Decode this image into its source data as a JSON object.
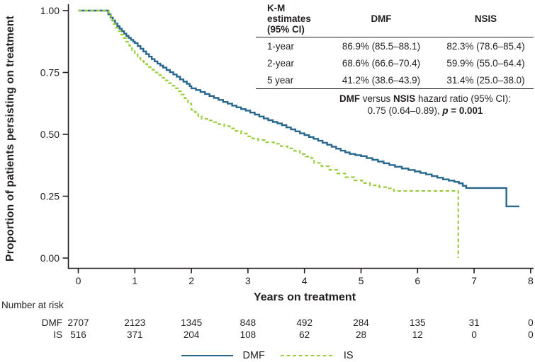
{
  "chart_data": {
    "type": "line",
    "subtype": "kaplan-meier-step",
    "title": "",
    "xlabel": "Years on treatment",
    "ylabel": "Proportion of patients persisting on treatment",
    "xlim": [
      0,
      8
    ],
    "ylim": [
      0.0,
      1.0
    ],
    "grid": false,
    "axis_color": "#231f20",
    "x_ticks": [
      {
        "value": 0,
        "label": "0"
      },
      {
        "value": 1,
        "label": "1"
      },
      {
        "value": 2,
        "label": "2"
      },
      {
        "value": 3,
        "label": "3"
      },
      {
        "value": 4,
        "label": "4"
      },
      {
        "value": 5,
        "label": "5"
      },
      {
        "value": 6,
        "label": "6"
      },
      {
        "value": 7,
        "label": "7"
      },
      {
        "value": 8,
        "label": "8"
      }
    ],
    "y_ticks": [
      {
        "value": 0.0,
        "label": "0.00"
      },
      {
        "value": 0.25,
        "label": "0.25"
      },
      {
        "value": 0.5,
        "label": "0.50"
      },
      {
        "value": 0.75,
        "label": "0.75"
      },
      {
        "value": 1.0,
        "label": "1.00"
      }
    ],
    "series": [
      {
        "name": "DMF",
        "color": "#27678e",
        "style": "solid",
        "points": [
          [
            0,
            1.0
          ],
          [
            0.5,
            1.0
          ],
          [
            0.53,
            0.985
          ],
          [
            0.57,
            0.972
          ],
          [
            0.61,
            0.96
          ],
          [
            0.65,
            0.948
          ],
          [
            0.69,
            0.937
          ],
          [
            0.73,
            0.927
          ],
          [
            0.77,
            0.917
          ],
          [
            0.81,
            0.907
          ],
          [
            0.85,
            0.898
          ],
          [
            0.89,
            0.89
          ],
          [
            0.93,
            0.882
          ],
          [
            0.97,
            0.875
          ],
          [
            1.0,
            0.869
          ],
          [
            1.05,
            0.857
          ],
          [
            1.1,
            0.846
          ],
          [
            1.15,
            0.835
          ],
          [
            1.2,
            0.824
          ],
          [
            1.25,
            0.814
          ],
          [
            1.3,
            0.804
          ],
          [
            1.35,
            0.795
          ],
          [
            1.4,
            0.786
          ],
          [
            1.45,
            0.778
          ],
          [
            1.5,
            0.77
          ],
          [
            1.56,
            0.76
          ],
          [
            1.62,
            0.751
          ],
          [
            1.68,
            0.742
          ],
          [
            1.74,
            0.733
          ],
          [
            1.8,
            0.722
          ],
          [
            1.86,
            0.713
          ],
          [
            1.92,
            0.704
          ],
          [
            1.97,
            0.695
          ],
          [
            2.0,
            0.686
          ],
          [
            2.08,
            0.679
          ],
          [
            2.16,
            0.671
          ],
          [
            2.24,
            0.663
          ],
          [
            2.32,
            0.655
          ],
          [
            2.4,
            0.647
          ],
          [
            2.48,
            0.639
          ],
          [
            2.56,
            0.631
          ],
          [
            2.64,
            0.624
          ],
          [
            2.72,
            0.616
          ],
          [
            2.8,
            0.609
          ],
          [
            2.88,
            0.602
          ],
          [
            2.96,
            0.596
          ],
          [
            3.04,
            0.588
          ],
          [
            3.12,
            0.58
          ],
          [
            3.2,
            0.572
          ],
          [
            3.28,
            0.564
          ],
          [
            3.36,
            0.557
          ],
          [
            3.44,
            0.55
          ],
          [
            3.52,
            0.544
          ],
          [
            3.6,
            0.537
          ],
          [
            3.68,
            0.528
          ],
          [
            3.76,
            0.52
          ],
          [
            3.84,
            0.512
          ],
          [
            3.92,
            0.504
          ],
          [
            4.0,
            0.497
          ],
          [
            4.08,
            0.489
          ],
          [
            4.16,
            0.482
          ],
          [
            4.24,
            0.474
          ],
          [
            4.32,
            0.466
          ],
          [
            4.4,
            0.458
          ],
          [
            4.48,
            0.45
          ],
          [
            4.56,
            0.442
          ],
          [
            4.64,
            0.434
          ],
          [
            4.72,
            0.427
          ],
          [
            4.8,
            0.421
          ],
          [
            4.9,
            0.416
          ],
          [
            5.0,
            0.412
          ],
          [
            5.1,
            0.404
          ],
          [
            5.2,
            0.397
          ],
          [
            5.3,
            0.39
          ],
          [
            5.4,
            0.383
          ],
          [
            5.5,
            0.376
          ],
          [
            5.6,
            0.369
          ],
          [
            5.72,
            0.362
          ],
          [
            5.84,
            0.356
          ],
          [
            5.95,
            0.35
          ],
          [
            6.05,
            0.344
          ],
          [
            6.15,
            0.338
          ],
          [
            6.25,
            0.331
          ],
          [
            6.35,
            0.325
          ],
          [
            6.45,
            0.318
          ],
          [
            6.55,
            0.313
          ],
          [
            6.65,
            0.308
          ],
          [
            6.73,
            0.302
          ],
          [
            6.8,
            0.292
          ],
          [
            6.86,
            0.283
          ],
          [
            7.55,
            0.283
          ],
          [
            7.57,
            0.209
          ],
          [
            7.8,
            0.209
          ]
        ]
      },
      {
        "name": "IS",
        "color": "#9ccd3f",
        "style": "dashed",
        "points": [
          [
            0,
            1.0
          ],
          [
            0.5,
            1.0
          ],
          [
            0.54,
            0.98
          ],
          [
            0.58,
            0.962
          ],
          [
            0.62,
            0.946
          ],
          [
            0.66,
            0.931
          ],
          [
            0.7,
            0.917
          ],
          [
            0.75,
            0.903
          ],
          [
            0.8,
            0.889
          ],
          [
            0.85,
            0.874
          ],
          [
            0.9,
            0.858
          ],
          [
            0.95,
            0.841
          ],
          [
            1.0,
            0.823
          ],
          [
            1.05,
            0.809
          ],
          [
            1.1,
            0.796
          ],
          [
            1.16,
            0.784
          ],
          [
            1.22,
            0.772
          ],
          [
            1.28,
            0.761
          ],
          [
            1.34,
            0.75
          ],
          [
            1.4,
            0.74
          ],
          [
            1.46,
            0.729
          ],
          [
            1.52,
            0.718
          ],
          [
            1.58,
            0.707
          ],
          [
            1.64,
            0.697
          ],
          [
            1.7,
            0.686
          ],
          [
            1.76,
            0.674
          ],
          [
            1.82,
            0.661
          ],
          [
            1.88,
            0.646
          ],
          [
            1.94,
            0.625
          ],
          [
            2.0,
            0.599
          ],
          [
            2.06,
            0.59
          ],
          [
            2.12,
            0.574
          ],
          [
            2.18,
            0.563
          ],
          [
            2.28,
            0.556
          ],
          [
            2.38,
            0.549
          ],
          [
            2.48,
            0.541
          ],
          [
            2.58,
            0.533
          ],
          [
            2.68,
            0.524
          ],
          [
            2.78,
            0.514
          ],
          [
            2.88,
            0.503
          ],
          [
            2.98,
            0.492
          ],
          [
            3.08,
            0.483
          ],
          [
            3.18,
            0.477
          ],
          [
            3.32,
            0.468
          ],
          [
            3.46,
            0.462
          ],
          [
            3.58,
            0.452
          ],
          [
            3.7,
            0.443
          ],
          [
            3.82,
            0.433
          ],
          [
            3.92,
            0.42
          ],
          [
            4.02,
            0.41
          ],
          [
            4.12,
            0.404
          ],
          [
            4.17,
            0.385
          ],
          [
            4.3,
            0.371
          ],
          [
            4.44,
            0.357
          ],
          [
            4.58,
            0.342
          ],
          [
            4.72,
            0.327
          ],
          [
            4.88,
            0.314
          ],
          [
            5.02,
            0.303
          ],
          [
            5.16,
            0.294
          ],
          [
            5.32,
            0.287
          ],
          [
            5.46,
            0.282
          ],
          [
            5.58,
            0.271
          ],
          [
            6.72,
            0.271
          ],
          [
            6.72,
            0.0
          ]
        ]
      }
    ],
    "km_table": {
      "header": {
        "col1_line1": "K-M estimates",
        "col1_line2": "(95% CI)",
        "col2": "DMF",
        "col3": "NSIS"
      },
      "rows": [
        {
          "label": "1-year",
          "dmf": "86.9% (85.5–88.1)",
          "nsis": "82.3% (78.6–85.4)"
        },
        {
          "label": "2-year",
          "dmf": "68.6% (66.6–70.4)",
          "nsis": "59.9% (55.0–64.4)"
        },
        {
          "label": "5 year",
          "dmf": "41.2% (38.6–43.9)",
          "nsis": "31.4% (25.0–38.0)"
        }
      ]
    },
    "hazard_ratio": {
      "bold1": "DMF",
      "mid": " versus ",
      "bold2": "NSIS",
      "rest": " hazard ratio (95% CI):",
      "value": "0.75 (0.64–0.89), ",
      "p_char": "p",
      "p_rest": " = 0.001"
    },
    "risk_table": {
      "title": "Number at risk",
      "rows": [
        {
          "label": "DMF",
          "values": [
            "2707",
            "2123",
            "1345",
            "848",
            "492",
            "284",
            "135",
            "31",
            "0"
          ]
        },
        {
          "label": "IS",
          "values": [
            "516",
            "371",
            "204",
            "108",
            "62",
            "28",
            "12",
            "0",
            "0"
          ]
        }
      ]
    },
    "legend": [
      {
        "label": "DMF",
        "style": "solid"
      },
      {
        "label": "IS",
        "style": "dashed"
      }
    ]
  }
}
